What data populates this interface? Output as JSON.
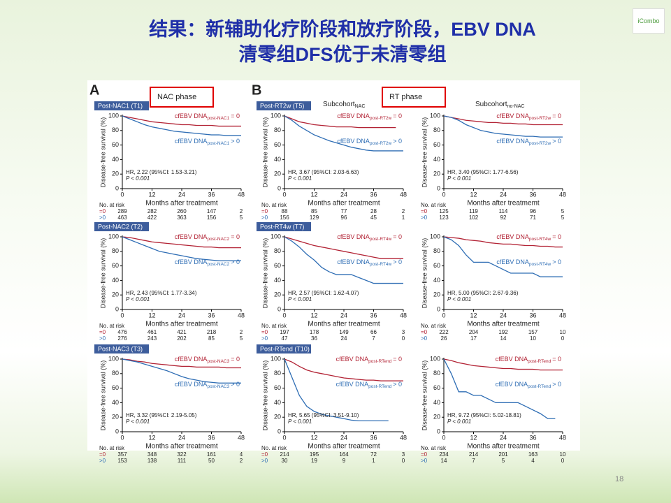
{
  "header": {
    "title_line1": "结果：新辅助化疗阶段和放疗阶段，EBV DNA",
    "title_line2": "清零组DFS优于未清零组"
  },
  "logo": "iCombo",
  "page_number": "18",
  "chart_data": [
    {
      "type": "line",
      "panel_label": "A",
      "phase": "NAC phase",
      "header": "Post-NAC1 (T1)",
      "xlabel": "Months after treatmemt",
      "ylabel": "Disease-free survival (%)",
      "xlim": [
        0,
        48
      ],
      "xticks": [
        0,
        12,
        24,
        36,
        48
      ],
      "ylim": [
        0,
        100
      ],
      "yticks": [
        0,
        20,
        40,
        60,
        80,
        100
      ],
      "x": [
        0,
        3,
        6,
        9,
        12,
        15,
        18,
        21,
        24,
        27,
        30,
        33,
        36,
        39,
        42,
        45,
        48
      ],
      "series": [
        {
          "name": "cfEBV DNA",
          "subscript": "post-NAC1",
          "suffix": "= 0",
          "color": "#b22234",
          "values": [
            100,
            98,
            96,
            94,
            92,
            91,
            90,
            89,
            88,
            88,
            87,
            87,
            87,
            86,
            86,
            86,
            86
          ]
        },
        {
          "name": "cfEBV DNA",
          "subscript": "post-NAC1",
          "suffix": "> 0",
          "color": "#2e6db4",
          "values": [
            100,
            96,
            92,
            88,
            85,
            83,
            81,
            79,
            78,
            77,
            76,
            75,
            74,
            74,
            73,
            73,
            73
          ]
        }
      ],
      "hr": "HR, 2.22 (95%CI: 1.53-3.21)",
      "p": "P < 0.001",
      "risk": {
        "title": "No. at risk",
        "rows": [
          {
            "label": "=0",
            "values": [
              289,
              282,
              260,
              147,
              2
            ]
          },
          {
            "label": ">0",
            "values": [
              463,
              422,
              363,
              156,
              5
            ]
          }
        ]
      }
    },
    {
      "type": "line",
      "header": "Post-NAC2 (T2)",
      "xlabel": "Months after treatmemt",
      "ylabel": "Disease-free survival (%)",
      "xlim": [
        0,
        48
      ],
      "xticks": [
        0,
        12,
        24,
        36,
        48
      ],
      "ylim": [
        0,
        100
      ],
      "yticks": [
        0,
        20,
        40,
        60,
        80,
        100
      ],
      "x": [
        0,
        3,
        6,
        9,
        12,
        15,
        18,
        21,
        24,
        27,
        30,
        33,
        36,
        39,
        42,
        45,
        48
      ],
      "series": [
        {
          "name": "cfEBV DNA",
          "subscript": "post-NAC2",
          "suffix": "= 0",
          "color": "#b22234",
          "values": [
            100,
            99,
            97,
            95,
            93,
            92,
            91,
            90,
            89,
            88,
            87,
            86,
            86,
            85,
            85,
            85,
            85
          ]
        },
        {
          "name": "cfEBV DNA",
          "subscript": "post-NAC2",
          "suffix": "> 0",
          "color": "#2e6db4",
          "values": [
            100,
            96,
            92,
            88,
            84,
            80,
            78,
            76,
            74,
            72,
            70,
            69,
            68,
            67,
            67,
            67,
            67
          ]
        }
      ],
      "hr": "HR, 2.43 (95%CI: 1.77-3.34)",
      "p": "P < 0.001",
      "risk": {
        "title": "No. at risk",
        "rows": [
          {
            "label": "=0",
            "values": [
              476,
              461,
              421,
              218,
              2
            ]
          },
          {
            "label": ">0",
            "values": [
              276,
              243,
              202,
              85,
              5
            ]
          }
        ]
      }
    },
    {
      "type": "line",
      "header": "Post-NAC3 (T3)",
      "xlabel": "Months after treatmemt",
      "ylabel": "Disease-free survival (%)",
      "xlim": [
        0,
        48
      ],
      "xticks": [
        0,
        12,
        24,
        36,
        48
      ],
      "ylim": [
        0,
        100
      ],
      "yticks": [
        0,
        20,
        40,
        60,
        80,
        100
      ],
      "x": [
        0,
        3,
        6,
        9,
        12,
        15,
        18,
        21,
        24,
        27,
        30,
        33,
        36,
        39,
        42,
        45,
        48
      ],
      "series": [
        {
          "name": "cfEBV DNA",
          "subscript": "post-NAC3",
          "suffix": "= 0",
          "color": "#b22234",
          "values": [
            100,
            99,
            97,
            96,
            94,
            93,
            92,
            91,
            90,
            90,
            89,
            89,
            89,
            89,
            88,
            88,
            88
          ]
        },
        {
          "name": "cfEBV DNA",
          "subscript": "post-NAC3",
          "suffix": "> 0",
          "color": "#2e6db4",
          "values": [
            100,
            98,
            96,
            93,
            90,
            87,
            84,
            80,
            76,
            73,
            71,
            69,
            68,
            67,
            67,
            67,
            67
          ]
        }
      ],
      "hr": "HR, 3.32 (95%CI: 2.19-5.05)",
      "p": "P < 0.001",
      "risk": {
        "title": "No. at risk",
        "rows": [
          {
            "label": "=0",
            "values": [
              357,
              348,
              322,
              161,
              4
            ]
          },
          {
            "label": ">0",
            "values": [
              153,
              138,
              111,
              50,
              2
            ]
          }
        ]
      }
    },
    {
      "type": "line",
      "panel_label": "B",
      "phase": "RT phase",
      "subtitle": "Subcohort",
      "subtitle_sub": "NAC",
      "header": "Post-RT2w (T5)",
      "xlabel": "Months after treatmemt",
      "ylabel": "Disease-free survival (%)",
      "xlim": [
        0,
        48
      ],
      "xticks": [
        0,
        12,
        24,
        36,
        48
      ],
      "ylim": [
        0,
        100
      ],
      "yticks": [
        0,
        20,
        40,
        60,
        80,
        100
      ],
      "x": [
        0,
        3,
        6,
        9,
        12,
        15,
        18,
        21,
        24,
        27,
        30,
        33,
        36,
        39,
        42,
        45,
        48
      ],
      "series": [
        {
          "name": "cfEBV DNA",
          "subscript": "post-RT2w",
          "suffix": "= 0",
          "color": "#b22234",
          "values": [
            100,
            96,
            92,
            90,
            88,
            87,
            86,
            85,
            85,
            85,
            84,
            84,
            84,
            84,
            84,
            84,
            null
          ]
        },
        {
          "name": "cfEBV DNA",
          "subscript": "post-RT2w",
          "suffix": "> 0",
          "color": "#2e6db4",
          "values": [
            100,
            94,
            86,
            80,
            74,
            70,
            66,
            63,
            60,
            57,
            55,
            53,
            52,
            52,
            52,
            52,
            52
          ]
        }
      ],
      "hr": "HR, 3.67 (95%CI: 2.03-6.63)",
      "p": "P < 0.001",
      "risk": {
        "title": "No. at risk",
        "rows": [
          {
            "label": "=0",
            "values": [
              88,
              85,
              77,
              28,
              2
            ]
          },
          {
            "label": ">0",
            "values": [
              156,
              129,
              96,
              45,
              1
            ]
          }
        ]
      }
    },
    {
      "type": "line",
      "subtitle": "Subcohort",
      "subtitle_sub": "no-NAC",
      "xlabel": "Months after treatmemt",
      "ylabel": "Disease-free survival (%)",
      "xlim": [
        0,
        48
      ],
      "xticks": [
        0,
        12,
        24,
        36,
        48
      ],
      "ylim": [
        0,
        100
      ],
      "yticks": [
        0,
        20,
        40,
        60,
        80,
        100
      ],
      "x": [
        0,
        3,
        6,
        9,
        12,
        15,
        18,
        21,
        24,
        27,
        30,
        33,
        36,
        39,
        42,
        45,
        48
      ],
      "series": [
        {
          "name": "cfEBV DNA",
          "subscript": "post-RT2w",
          "suffix": "= 0",
          "color": "#b22234",
          "values": [
            100,
            98,
            96,
            94,
            93,
            92,
            91,
            91,
            90,
            90,
            89,
            89,
            88,
            88,
            88,
            88,
            88
          ]
        },
        {
          "name": "cfEBV DNA",
          "subscript": "post-RT2w",
          "suffix": "> 0",
          "color": "#2e6db4",
          "values": [
            100,
            98,
            94,
            88,
            84,
            80,
            78,
            76,
            75,
            74,
            73,
            72,
            72,
            71,
            71,
            71,
            71
          ]
        }
      ],
      "hr": "HR, 3.40 (95%CI: 1.77-6.56)",
      "p": "P < 0.001",
      "risk": {
        "title": "No. at risk",
        "rows": [
          {
            "label": "=0",
            "values": [
              125,
              119,
              114,
              96,
              5
            ]
          },
          {
            "label": ">0",
            "values": [
              123,
              102,
              92,
              71,
              5
            ]
          }
        ]
      }
    },
    {
      "type": "line",
      "header": "Post-RT4w (T7)",
      "xlabel": "Months after treatmemt",
      "ylabel": "Disease-free survival (%)",
      "xlim": [
        0,
        48
      ],
      "xticks": [
        0,
        12,
        24,
        36,
        48
      ],
      "ylim": [
        0,
        100
      ],
      "yticks": [
        0,
        20,
        40,
        60,
        80,
        100
      ],
      "x": [
        0,
        3,
        6,
        9,
        12,
        15,
        18,
        21,
        24,
        27,
        30,
        33,
        36,
        39,
        42,
        45,
        48
      ],
      "series": [
        {
          "name": "cfEBV DNA",
          "subscript": "post-RT4w",
          "suffix": "= 0",
          "color": "#b22234",
          "values": [
            100,
            97,
            94,
            91,
            88,
            86,
            84,
            82,
            80,
            78,
            76,
            74,
            72,
            70,
            70,
            70,
            70
          ]
        },
        {
          "name": "cfEBV DNA",
          "subscript": "post-RT4w",
          "suffix": "> 0",
          "color": "#2e6db4",
          "values": [
            100,
            94,
            86,
            76,
            68,
            58,
            52,
            48,
            48,
            48,
            44,
            40,
            36,
            36,
            36,
            36,
            36
          ]
        }
      ],
      "hr": "HR, 2.57 (95%CI: 1.62-4.07)",
      "p": "P < 0.001",
      "risk": {
        "title": "No. at risk",
        "rows": [
          {
            "label": "=0",
            "values": [
              197,
              178,
              149,
              66,
              3
            ]
          },
          {
            "label": ">0",
            "values": [
              47,
              36,
              24,
              7,
              0
            ]
          }
        ]
      }
    },
    {
      "type": "line",
      "xlabel": "Months after treatmemt",
      "ylabel": "Disease-free survival (%)",
      "xlim": [
        0,
        48
      ],
      "xticks": [
        0,
        12,
        24,
        36,
        48
      ],
      "ylim": [
        0,
        100
      ],
      "yticks": [
        0,
        20,
        40,
        60,
        80,
        100
      ],
      "x": [
        0,
        3,
        6,
        9,
        12,
        15,
        18,
        21,
        24,
        27,
        30,
        33,
        36,
        39,
        42,
        45,
        48
      ],
      "series": [
        {
          "name": "cfEBV DNA",
          "subscript": "post-RT4w",
          "suffix": "= 0",
          "color": "#b22234",
          "values": [
            100,
            99,
            98,
            96,
            95,
            94,
            92,
            91,
            90,
            90,
            89,
            88,
            88,
            87,
            87,
            86,
            86
          ]
        },
        {
          "name": "cfEBV DNA",
          "subscript": "post-RT4w",
          "suffix": "> 0",
          "color": "#2e6db4",
          "values": [
            100,
            96,
            88,
            75,
            65,
            65,
            65,
            60,
            55,
            50,
            50,
            50,
            50,
            45,
            45,
            45,
            45
          ]
        }
      ],
      "hr": "HR, 5.00 (95%CI: 2.67-9.36)",
      "p": "P < 0.001",
      "risk": {
        "title": "No. at risk",
        "rows": [
          {
            "label": "=0",
            "values": [
              222,
              204,
              192,
              157,
              10
            ]
          },
          {
            "label": ">0",
            "values": [
              26,
              17,
              14,
              10,
              0
            ]
          }
        ]
      }
    },
    {
      "type": "line",
      "header": "Post-RTend (T10)",
      "xlabel": "Months after treatmemt",
      "ylabel": "Disease-free survival (%)",
      "xlim": [
        0,
        48
      ],
      "xticks": [
        0,
        12,
        24,
        36,
        48
      ],
      "ylim": [
        0,
        100
      ],
      "yticks": [
        0,
        20,
        40,
        60,
        80,
        100
      ],
      "x": [
        0,
        3,
        6,
        9,
        12,
        15,
        18,
        21,
        24,
        27,
        30,
        33,
        36,
        39,
        42,
        45,
        48
      ],
      "series": [
        {
          "name": "cfEBV DNA",
          "subscript": "post-RTend",
          "suffix": "= 0",
          "color": "#b22234",
          "values": [
            100,
            96,
            90,
            85,
            82,
            80,
            78,
            76,
            74,
            73,
            72,
            71,
            71,
            70,
            70,
            70,
            70
          ]
        },
        {
          "name": "cfEBV DNA",
          "subscript": "post-RTend",
          "suffix": "> 0",
          "color": "#2e6db4",
          "values": [
            100,
            75,
            50,
            35,
            28,
            24,
            22,
            20,
            18,
            16,
            15,
            15,
            15,
            15,
            15,
            null,
            null
          ]
        }
      ],
      "hr": "HR, 5.65 (95%CI: 3.51-9.10)",
      "p": "P < 0.001",
      "risk": {
        "title": "No. at risk",
        "rows": [
          {
            "label": "=0",
            "values": [
              214,
              195,
              164,
              72,
              3
            ]
          },
          {
            "label": ">0",
            "values": [
              30,
              19,
              9,
              1,
              0
            ]
          }
        ]
      }
    },
    {
      "type": "line",
      "xlabel": "Months after treatmemt",
      "ylabel": "Disease-free survival (%)",
      "xlim": [
        0,
        48
      ],
      "xticks": [
        0,
        12,
        24,
        36,
        48
      ],
      "ylim": [
        0,
        100
      ],
      "yticks": [
        0,
        20,
        40,
        60,
        80,
        100
      ],
      "x": [
        0,
        3,
        6,
        9,
        12,
        15,
        18,
        21,
        24,
        27,
        30,
        33,
        36,
        39,
        42,
        45,
        48
      ],
      "series": [
        {
          "name": "cfEBV DNA",
          "subscript": "post-RTend",
          "suffix": "= 0",
          "color": "#b22234",
          "values": [
            100,
            98,
            95,
            93,
            91,
            90,
            89,
            88,
            87,
            87,
            86,
            86,
            86,
            85,
            85,
            85,
            85
          ]
        },
        {
          "name": "cfEBV DNA",
          "subscript": "post-RTend",
          "suffix": "> 0",
          "color": "#2e6db4",
          "values": [
            100,
            80,
            55,
            55,
            50,
            50,
            45,
            40,
            40,
            40,
            40,
            35,
            30,
            25,
            18,
            18,
            null
          ]
        }
      ],
      "hr": "HR, 9.72 (95%CI: 5.02-18.81)",
      "p": "P < 0.001",
      "risk": {
        "title": "No. at risk",
        "rows": [
          {
            "label": "=0",
            "values": [
              234,
              214,
              201,
              163,
              10
            ]
          },
          {
            "label": ">0",
            "values": [
              14,
              7,
              5,
              4,
              0
            ]
          }
        ]
      }
    }
  ]
}
